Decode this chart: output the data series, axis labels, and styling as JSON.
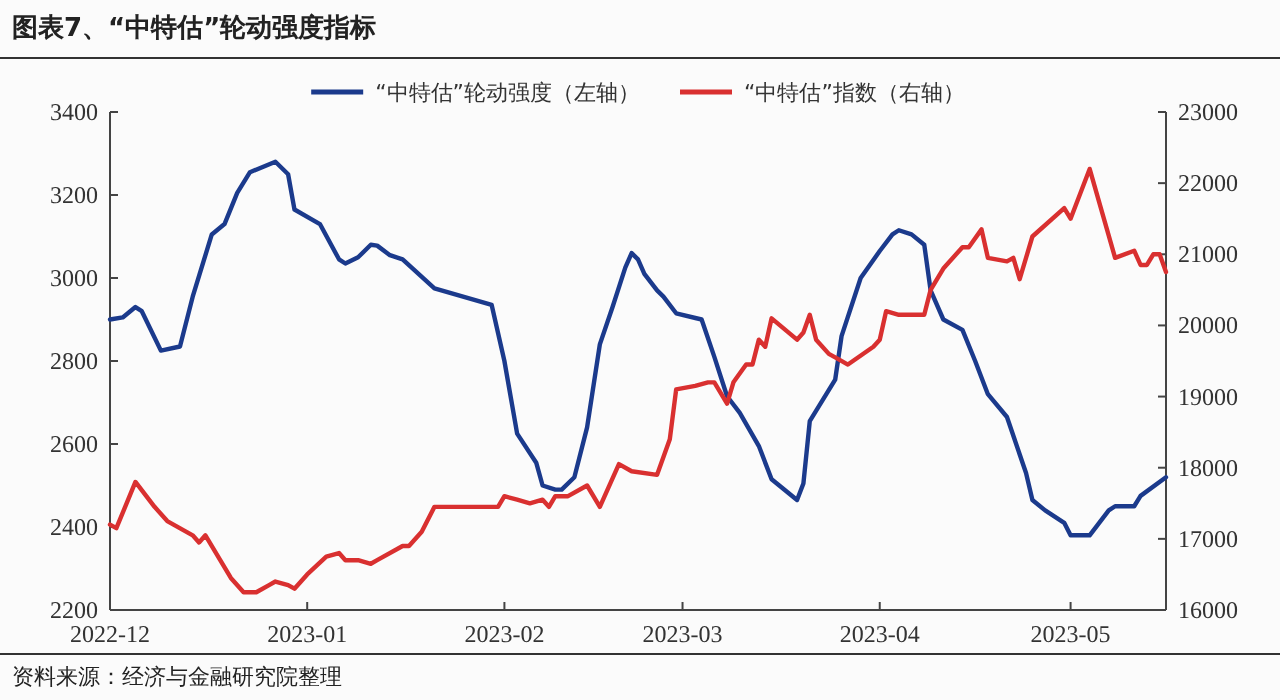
{
  "chart_data": {
    "type": "line",
    "title": "图表7、“中特估”轮动强度指标",
    "annotations": [
      "资料来源：经济与金融研究院整理"
    ],
    "xlim": [
      "2022-12-01",
      "2023-05-16"
    ],
    "xticks": [
      "2022-12",
      "2023-01",
      "2023-02",
      "2023-03",
      "2023-04",
      "2023-05"
    ],
    "ylim": [
      2200,
      3400
    ],
    "yticks": [
      2200,
      2400,
      2600,
      2800,
      3000,
      3200,
      3400
    ],
    "y2lim": [
      16000,
      23000
    ],
    "y2ticks": [
      16000,
      17000,
      18000,
      19000,
      20000,
      21000,
      22000,
      23000
    ],
    "legend": "top",
    "series": [
      {
        "name": "“中特估”轮动强度（左轴）",
        "color": "#1b3a8c",
        "axis": "y",
        "x": [
          "2022-12-01",
          "2022-12-03",
          "2022-12-05",
          "2022-12-06",
          "2022-12-09",
          "2022-12-12",
          "2022-12-14",
          "2022-12-17",
          "2022-12-19",
          "2022-12-21",
          "2022-12-23",
          "2022-12-27",
          "2022-12-29",
          "2022-12-30",
          "2023-01-03",
          "2023-01-06",
          "2023-01-07",
          "2023-01-09",
          "2023-01-11",
          "2023-01-12",
          "2023-01-14",
          "2023-01-16",
          "2023-01-21",
          "2023-01-30",
          "2023-02-01",
          "2023-02-03",
          "2023-02-06",
          "2023-02-07",
          "2023-02-09",
          "2023-02-10",
          "2023-02-12",
          "2023-02-14",
          "2023-02-16",
          "2023-02-18",
          "2023-02-20",
          "2023-02-21",
          "2023-02-22",
          "2023-02-23",
          "2023-02-25",
          "2023-02-26",
          "2023-02-28",
          "2023-03-04",
          "2023-03-06",
          "2023-03-08",
          "2023-03-10",
          "2023-03-13",
          "2023-03-15",
          "2023-03-19",
          "2023-03-20",
          "2023-03-21",
          "2023-03-25",
          "2023-03-26",
          "2023-03-29",
          "2023-04-01",
          "2023-04-03",
          "2023-04-04",
          "2023-04-06",
          "2023-04-08",
          "2023-04-09",
          "2023-04-11",
          "2023-04-14",
          "2023-04-16",
          "2023-04-18",
          "2023-04-21",
          "2023-04-24",
          "2023-04-25",
          "2023-04-27",
          "2023-04-30",
          "2023-05-01",
          "2023-05-04",
          "2023-05-07",
          "2023-05-08",
          "2023-05-11",
          "2023-05-12",
          "2023-05-16"
        ],
        "values": [
          2900,
          2905,
          2930,
          2920,
          2825,
          2835,
          2955,
          3105,
          3130,
          3205,
          3255,
          3280,
          3250,
          3165,
          3130,
          3045,
          3035,
          3050,
          3080,
          3078,
          3055,
          3045,
          2975,
          2935,
          2800,
          2625,
          2555,
          2500,
          2490,
          2490,
          2520,
          2640,
          2840,
          2930,
          3025,
          3060,
          3045,
          3010,
          2970,
          2955,
          2915,
          2900,
          2810,
          2715,
          2675,
          2595,
          2515,
          2465,
          2505,
          2655,
          2755,
          2860,
          3000,
          3065,
          3105,
          3115,
          3105,
          3080,
          2970,
          2900,
          2875,
          2800,
          2720,
          2665,
          2530,
          2465,
          2440,
          2410,
          2380,
          2380,
          2440,
          2450,
          2450,
          2475,
          2520
        ]
      },
      {
        "name": "“中特估”指数（右轴）",
        "color": "#d93030",
        "axis": "y2",
        "x": [
          "2022-12-01",
          "2022-12-02",
          "2022-12-05",
          "2022-12-08",
          "2022-12-10",
          "2022-12-14",
          "2022-12-15",
          "2022-12-16",
          "2022-12-20",
          "2022-12-22",
          "2022-12-24",
          "2022-12-26",
          "2022-12-27",
          "2022-12-29",
          "2022-12-30",
          "2023-01-01",
          "2023-01-04",
          "2023-01-06",
          "2023-01-07",
          "2023-01-09",
          "2023-01-11",
          "2023-01-12",
          "2023-01-16",
          "2023-01-17",
          "2023-01-19",
          "2023-01-21",
          "2023-01-31",
          "2023-02-01",
          "2023-02-03",
          "2023-02-05",
          "2023-02-07",
          "2023-02-08",
          "2023-02-09",
          "2023-02-11",
          "2023-02-14",
          "2023-02-16",
          "2023-02-19",
          "2023-02-21",
          "2023-02-25",
          "2023-02-27",
          "2023-02-28",
          "2023-03-03",
          "2023-03-05",
          "2023-03-06",
          "2023-03-08",
          "2023-03-09",
          "2023-03-11",
          "2023-03-12",
          "2023-03-13",
          "2023-03-14",
          "2023-03-15",
          "2023-03-19",
          "2023-03-20",
          "2023-03-21",
          "2023-03-22",
          "2023-03-24",
          "2023-03-25",
          "2023-03-27",
          "2023-03-31",
          "2023-04-01",
          "2023-04-02",
          "2023-04-04",
          "2023-04-08",
          "2023-04-09",
          "2023-04-11",
          "2023-04-14",
          "2023-04-15",
          "2023-04-17",
          "2023-04-18",
          "2023-04-21",
          "2023-04-22",
          "2023-04-23",
          "2023-04-25",
          "2023-04-30",
          "2023-05-01",
          "2023-05-04",
          "2023-05-08",
          "2023-05-11",
          "2023-05-12",
          "2023-05-13",
          "2023-05-14",
          "2023-05-15",
          "2023-05-16"
        ],
        "values": [
          17200,
          17150,
          17800,
          17450,
          17250,
          17050,
          16950,
          17050,
          16450,
          16250,
          16250,
          16350,
          16400,
          16350,
          16300,
          16500,
          16750,
          16800,
          16700,
          16700,
          16650,
          16700,
          16900,
          16900,
          17100,
          17450,
          17450,
          17600,
          17550,
          17500,
          17550,
          17450,
          17600,
          17600,
          17750,
          17450,
          18050,
          17950,
          17900,
          18400,
          19100,
          19150,
          19200,
          19200,
          18900,
          19200,
          19450,
          19450,
          19800,
          19700,
          20100,
          19800,
          19900,
          20150,
          19800,
          19600,
          19550,
          19450,
          19700,
          19800,
          20200,
          20150,
          20150,
          20500,
          20800,
          21100,
          21100,
          21350,
          20950,
          20900,
          20950,
          20650,
          21250,
          21650,
          21500,
          22200,
          20950,
          21050,
          20850,
          20850,
          21000,
          21000,
          20750
        ]
      }
    ]
  }
}
